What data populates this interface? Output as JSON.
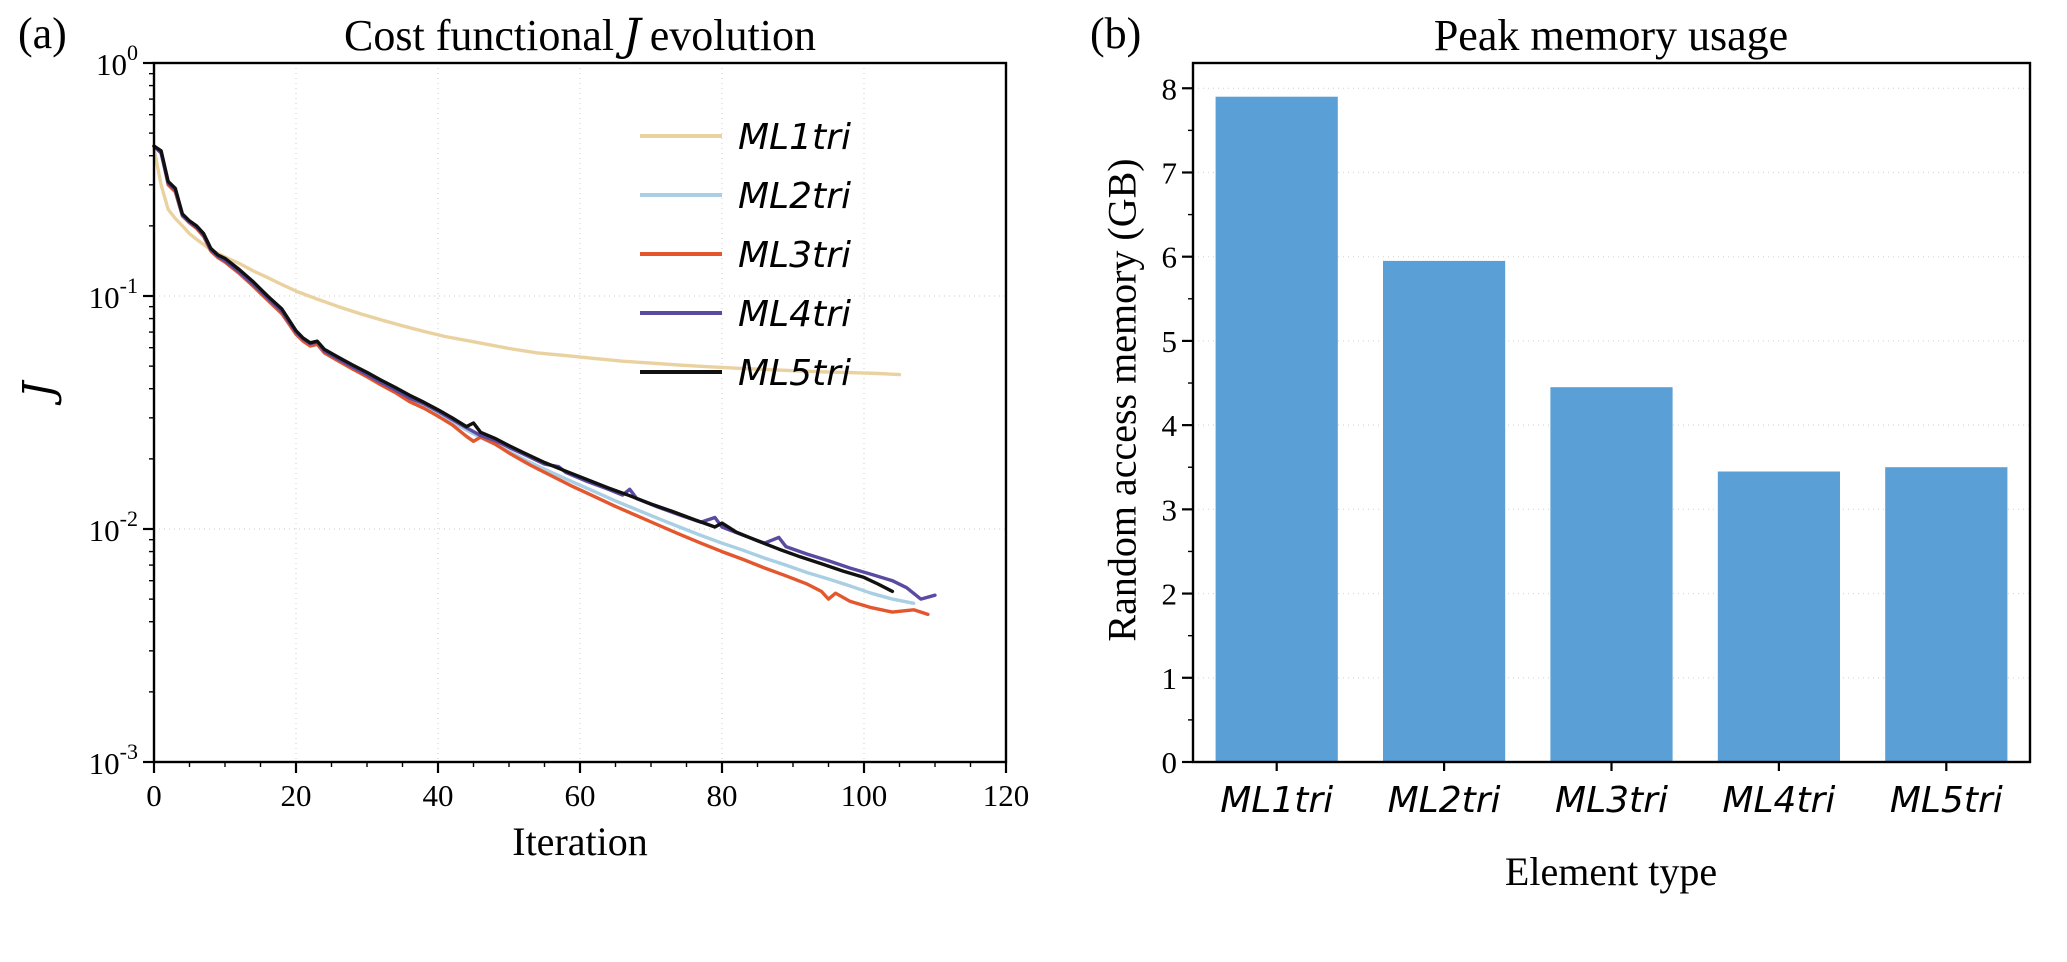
{
  "figure": {
    "background": "#ffffff"
  },
  "panels": {
    "a": {
      "label": "(a)",
      "title_pre": "Cost functional",
      "title_math": "J",
      "title_post": "evolution"
    },
    "b": {
      "label": "(b)"
    }
  },
  "chart_data": [
    {
      "type": "line",
      "title": "Cost functional J evolution",
      "xlabel": "Iteration",
      "ylabel": "J",
      "xlim": [
        0,
        120
      ],
      "x_ticks": [
        0,
        20,
        40,
        60,
        80,
        100,
        120
      ],
      "x_minor_step": 5,
      "y_scale": "log",
      "ylim_exponents": [
        -3,
        0
      ],
      "y_tick_exponents": [
        0,
        -1,
        -2,
        -3
      ],
      "grid": true,
      "legend_position": "upper right",
      "series": [
        {
          "name": "ML1tri",
          "color": "#ead2a0",
          "x": [
            0,
            1,
            2,
            3,
            4,
            5,
            6,
            8,
            10,
            12,
            14,
            16,
            18,
            20,
            23,
            26,
            29,
            32,
            35,
            38,
            41,
            44,
            47,
            50,
            54,
            58,
            62,
            66,
            70,
            74,
            78,
            82,
            86,
            90,
            94,
            98,
            102,
            105
          ],
          "y": [
            0.43,
            0.3,
            0.235,
            0.215,
            0.2,
            0.185,
            0.175,
            0.158,
            0.147,
            0.138,
            0.128,
            0.12,
            0.112,
            0.105,
            0.097,
            0.09,
            0.084,
            0.079,
            0.0745,
            0.0705,
            0.067,
            0.0645,
            0.062,
            0.0595,
            0.057,
            0.0555,
            0.054,
            0.0525,
            0.0515,
            0.0505,
            0.0497,
            0.049,
            0.0484,
            0.0478,
            0.0473,
            0.0469,
            0.0465,
            0.046
          ]
        },
        {
          "name": "ML2tri",
          "color": "#a9cfe5",
          "x": [
            0,
            1,
            2,
            3,
            4,
            5,
            6,
            7,
            8,
            9,
            10,
            12,
            14,
            16,
            18,
            20,
            21,
            22,
            23,
            24,
            26,
            28,
            30,
            32,
            34,
            36,
            38,
            40,
            42,
            44,
            46,
            48,
            50,
            53,
            56,
            59,
            62,
            65,
            68,
            71,
            74,
            77,
            80,
            83,
            86,
            89,
            92,
            95,
            98,
            101,
            104,
            107
          ],
          "y": [
            0.44,
            0.415,
            0.3,
            0.28,
            0.22,
            0.207,
            0.196,
            0.18,
            0.157,
            0.147,
            0.141,
            0.126,
            0.111,
            0.097,
            0.085,
            0.069,
            0.0645,
            0.0615,
            0.0625,
            0.0575,
            0.053,
            0.049,
            0.0455,
            0.042,
            0.039,
            0.036,
            0.0338,
            0.0313,
            0.0288,
            0.0266,
            0.0247,
            0.0231,
            0.0215,
            0.0193,
            0.0175,
            0.0159,
            0.0145,
            0.0132,
            0.0121,
            0.0111,
            0.0102,
            0.0094,
            0.0087,
            0.0081,
            0.0075,
            0.007,
            0.0065,
            0.0061,
            0.0057,
            0.0053,
            0.005,
            0.0048
          ]
        },
        {
          "name": "ML3tri",
          "color": "#e4572e",
          "x": [
            0,
            1,
            2,
            3,
            4,
            5,
            6,
            7,
            8,
            9,
            10,
            12,
            14,
            16,
            18,
            20,
            21,
            22,
            23,
            24,
            26,
            28,
            30,
            32,
            34,
            36,
            38,
            40,
            42,
            44,
            45,
            46,
            48,
            50,
            53,
            56,
            59,
            62,
            65,
            68,
            71,
            74,
            77,
            80,
            83,
            86,
            89,
            92,
            94,
            95,
            96,
            98,
            101,
            104,
            107,
            109
          ],
          "y": [
            0.44,
            0.415,
            0.3,
            0.28,
            0.221,
            0.206,
            0.195,
            0.18,
            0.156,
            0.146,
            0.14,
            0.125,
            0.11,
            0.096,
            0.084,
            0.0685,
            0.064,
            0.061,
            0.062,
            0.057,
            0.0525,
            0.0485,
            0.045,
            0.0415,
            0.0385,
            0.0352,
            0.033,
            0.0305,
            0.028,
            0.025,
            0.0238,
            0.0248,
            0.0232,
            0.0212,
            0.0188,
            0.0169,
            0.0152,
            0.0138,
            0.0125,
            0.0114,
            0.0104,
            0.0095,
            0.0087,
            0.008,
            0.0074,
            0.0068,
            0.0063,
            0.0058,
            0.0054,
            0.005,
            0.0053,
            0.0049,
            0.0046,
            0.0044,
            0.0045,
            0.0043
          ]
        },
        {
          "name": "ML4tri",
          "color": "#5b4aa2",
          "x": [
            0,
            1,
            2,
            3,
            4,
            5,
            6,
            7,
            8,
            9,
            10,
            12,
            14,
            16,
            18,
            20,
            21,
            22,
            23,
            24,
            26,
            28,
            30,
            32,
            34,
            36,
            38,
            40,
            42,
            44,
            46,
            48,
            50,
            52,
            55,
            57,
            58,
            61,
            64,
            66,
            67,
            68,
            71,
            74,
            77,
            79,
            80,
            83,
            86,
            88,
            89,
            92,
            95,
            98,
            101,
            104,
            106,
            108,
            110
          ],
          "y": [
            0.44,
            0.41,
            0.305,
            0.285,
            0.222,
            0.208,
            0.197,
            0.182,
            0.158,
            0.148,
            0.142,
            0.127,
            0.112,
            0.098,
            0.086,
            0.07,
            0.0655,
            0.0625,
            0.0635,
            0.058,
            0.0535,
            0.0495,
            0.046,
            0.0425,
            0.0395,
            0.0365,
            0.0345,
            0.032,
            0.0295,
            0.0272,
            0.0252,
            0.024,
            0.0224,
            0.021,
            0.019,
            0.0185,
            0.0175,
            0.016,
            0.0148,
            0.014,
            0.0148,
            0.0135,
            0.0124,
            0.0115,
            0.0107,
            0.0112,
            0.0102,
            0.0094,
            0.0087,
            0.0092,
            0.0084,
            0.0078,
            0.0073,
            0.0068,
            0.0064,
            0.006,
            0.0056,
            0.005,
            0.0052
          ]
        },
        {
          "name": "ML5tri",
          "color": "#111111",
          "x": [
            0,
            1,
            2,
            3,
            4,
            5,
            6,
            7,
            8,
            9,
            10,
            12,
            14,
            16,
            18,
            20,
            21,
            22,
            23,
            24,
            26,
            28,
            30,
            32,
            34,
            36,
            38,
            40,
            42,
            44,
            45,
            46,
            48,
            50,
            52,
            55,
            58,
            61,
            64,
            67,
            70,
            73,
            76,
            79,
            80,
            82,
            85,
            88,
            91,
            94,
            97,
            100,
            102,
            104
          ],
          "y": [
            0.44,
            0.42,
            0.31,
            0.29,
            0.225,
            0.21,
            0.2,
            0.185,
            0.16,
            0.15,
            0.145,
            0.13,
            0.115,
            0.1,
            0.088,
            0.071,
            0.066,
            0.063,
            0.064,
            0.059,
            0.0545,
            0.0505,
            0.047,
            0.0435,
            0.0405,
            0.0375,
            0.035,
            0.0325,
            0.03,
            0.0275,
            0.0285,
            0.026,
            0.0245,
            0.0228,
            0.0213,
            0.0193,
            0.0177,
            0.0163,
            0.015,
            0.0139,
            0.0128,
            0.0119,
            0.011,
            0.0102,
            0.0106,
            0.0097,
            0.0089,
            0.0082,
            0.0076,
            0.0071,
            0.0066,
            0.0062,
            0.0058,
            0.0054
          ]
        }
      ]
    },
    {
      "type": "bar",
      "title": "Peak memory usage",
      "xlabel": "Element type",
      "ylabel": "Random access memory (GB)",
      "categories": [
        "ML1tri",
        "ML2tri",
        "ML3tri",
        "ML4tri",
        "ML5tri"
      ],
      "values": [
        7.9,
        5.95,
        4.45,
        3.45,
        3.5
      ],
      "bar_color": "#5a9fd5",
      "ylim": [
        0,
        8.3
      ],
      "y_ticks": [
        0,
        1,
        2,
        3,
        4,
        5,
        6,
        7,
        8
      ],
      "y_minor_step": 0.5,
      "grid": true
    }
  ]
}
